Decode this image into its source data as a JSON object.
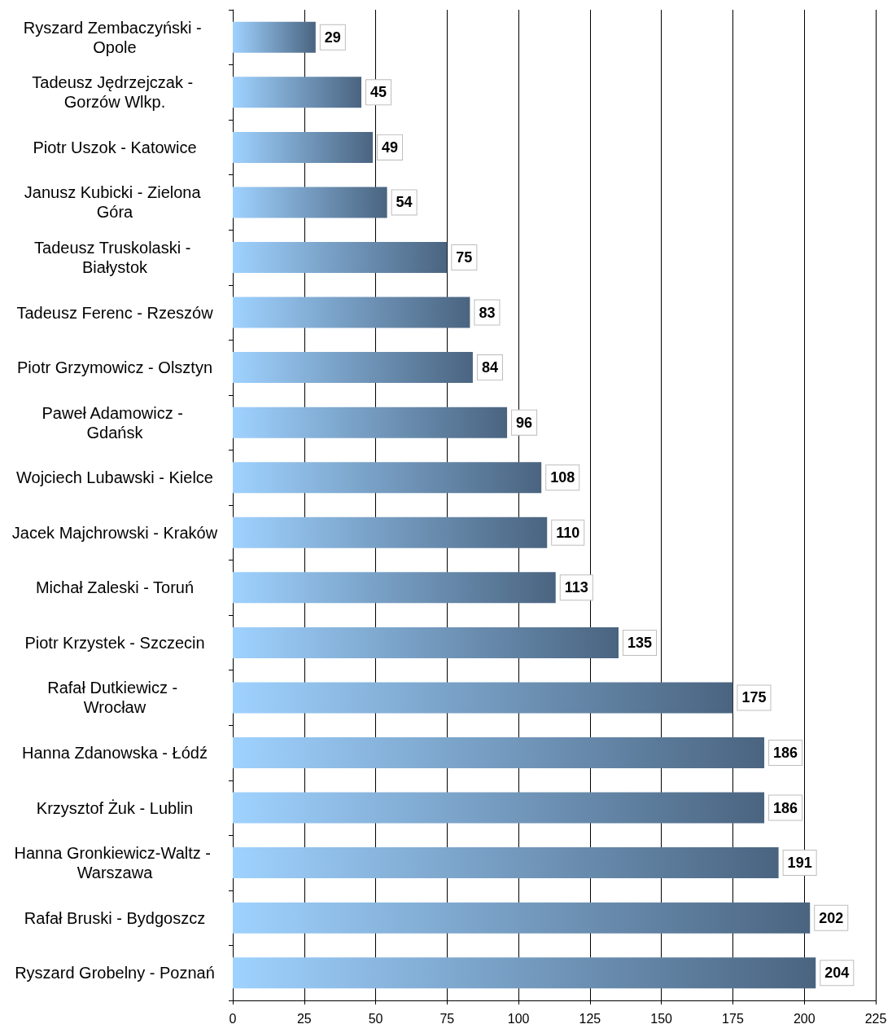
{
  "chart_data": {
    "type": "bar",
    "orientation": "horizontal",
    "categories": [
      "Ryszard Zembaczyński - Opole",
      "Tadeusz Jędrzejczak - Gorzów Wlkp.",
      "Piotr Uszok - Katowice",
      "Janusz Kubicki - Zielona Góra",
      "Tadeusz Truskolaski - Białystok",
      "Tadeusz Ferenc - Rzeszów",
      "Piotr Grzymowicz - Olsztyn",
      "Paweł Adamowicz - Gdańsk",
      "Wojciech Lubawski - Kielce",
      "Jacek Majchrowski - Kraków",
      "Michał Zaleski - Toruń",
      "Piotr Krzystek - Szczecin",
      "Rafał Dutkiewicz - Wrocław",
      "Hanna Zdanowska - Łódź",
      "Krzysztof Żuk - Lublin",
      "Hanna Gronkiewicz-Waltz - Warszawa",
      "Rafał Bruski - Bydgoszcz",
      "Ryszard Grobelny - Poznań"
    ],
    "values": [
      29,
      45,
      49,
      54,
      75,
      83,
      84,
      96,
      108,
      110,
      113,
      135,
      175,
      186,
      186,
      191,
      202,
      204
    ],
    "color": "#4a6480",
    "xlim": [
      0,
      225
    ],
    "xticks": [
      0,
      25,
      50,
      75,
      100,
      125,
      150,
      175,
      200,
      225
    ],
    "grid": "x",
    "data_labels": true
  }
}
